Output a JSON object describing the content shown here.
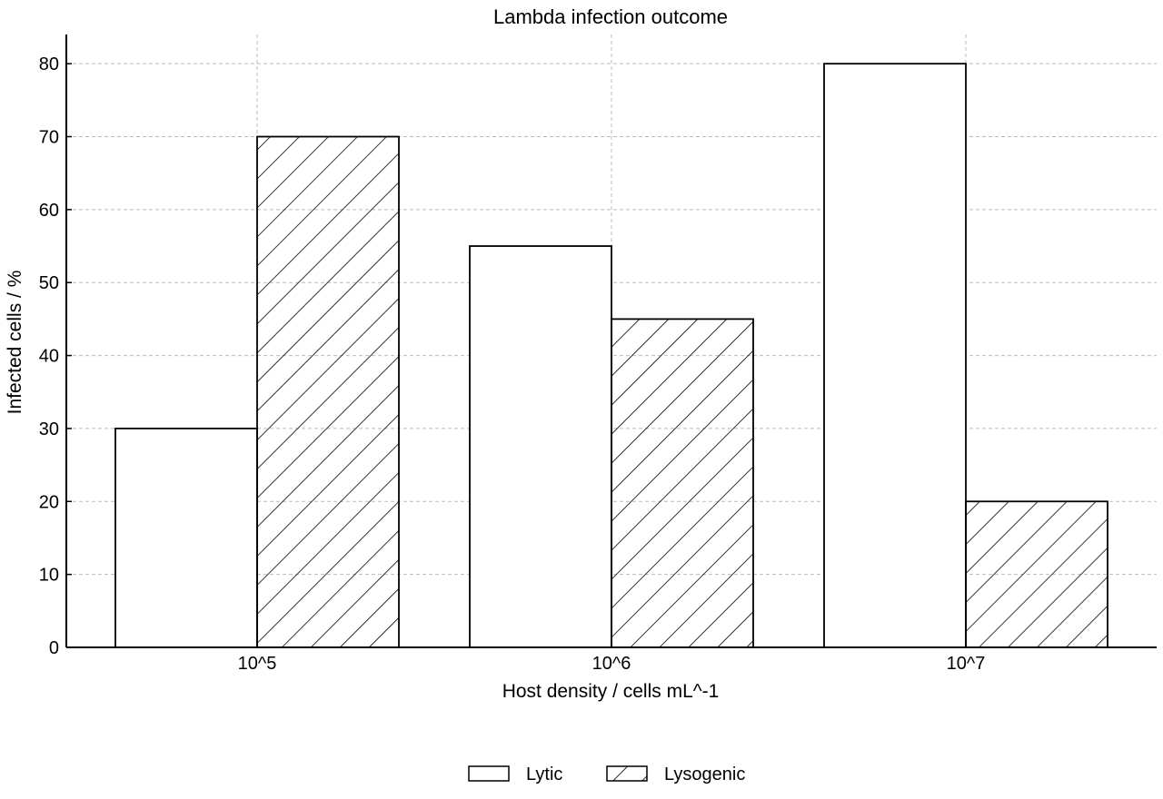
{
  "chart_data": {
    "type": "bar",
    "title": "Lambda infection outcome",
    "xlabel": "Host density / cells mL^-1",
    "ylabel": "Infected cells / %",
    "categories": [
      "10^5",
      "10^6",
      "10^7"
    ],
    "series": [
      {
        "name": "Lytic",
        "values": [
          30,
          55,
          80
        ],
        "fill": "none"
      },
      {
        "name": "Lysogenic",
        "values": [
          70,
          45,
          20
        ],
        "fill": "diagonal-hatch"
      }
    ],
    "ylim": [
      0,
      84
    ],
    "yticks": [
      0,
      10,
      20,
      30,
      40,
      50,
      60,
      70,
      80
    ],
    "grid": true,
    "legend_position": "bottom-center",
    "colors": {
      "edge": "#000000",
      "grid": "#bbbbbb",
      "background": "#ffffff"
    }
  }
}
